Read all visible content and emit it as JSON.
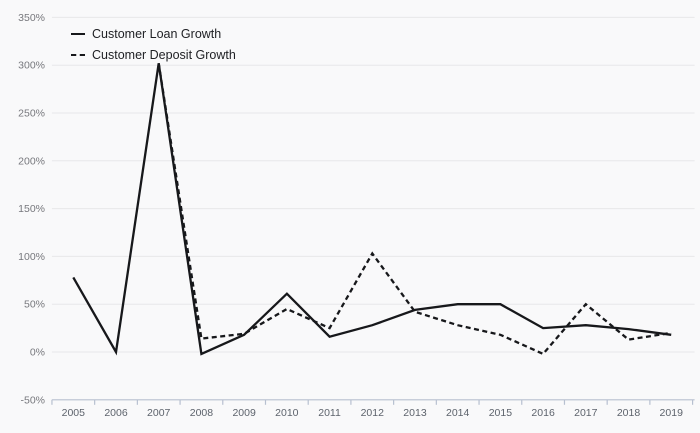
{
  "chart_data": {
    "type": "line",
    "title": "",
    "xlabel": "",
    "ylabel": "",
    "unit": "%",
    "x": [
      "2005",
      "2006",
      "2007",
      "2008",
      "2009",
      "2010",
      "2011",
      "2012",
      "2013",
      "2014",
      "2015",
      "2016",
      "2017",
      "2018",
      "2019"
    ],
    "series": [
      {
        "name": "Customer Loan Growth",
        "style": "solid",
        "values": [
          78,
          0,
          302,
          -2,
          18,
          61,
          16,
          28,
          44,
          50,
          50,
          25,
          28,
          24,
          18
        ]
      },
      {
        "name": "Customer Deposit Growth",
        "style": "dashed",
        "values": [
          null,
          null,
          302,
          14,
          19,
          45,
          25,
          103,
          42,
          28,
          18,
          -2,
          50,
          13,
          20
        ]
      }
    ],
    "ylim": [
      -50,
      350
    ],
    "y_tick_values": [
      350,
      300,
      250,
      200,
      150,
      100,
      50,
      0,
      -50
    ],
    "y_tick_labels": [
      "350%",
      "300%",
      "250%",
      "200%",
      "150%",
      "100%",
      "50%",
      "0%",
      "-50%"
    ],
    "grid": "horizontal",
    "legend_position": "top-left",
    "colors": {
      "line": "#17181b",
      "grid": "#e7e7e9",
      "axis": "#b7c0d0",
      "y_tick_text": "#77787d",
      "x_tick_text": "#5d636c",
      "legend_text": "#1e1f23",
      "background": "#f9f9fa"
    }
  }
}
